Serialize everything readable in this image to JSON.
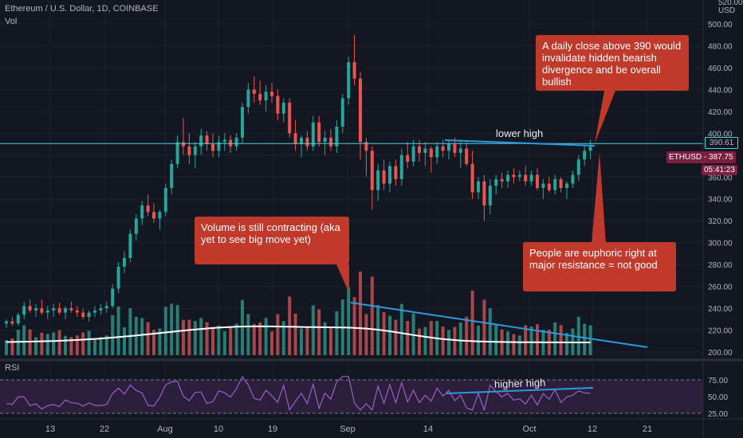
{
  "header": {
    "symbol_line": "Ethereum / U.S. Dollar, 1D, COINBASE",
    "volume_label": "Vol",
    "rsi_label": "RSI"
  },
  "price_axis": {
    "currency": "USD",
    "top_partial": "520.00",
    "ticks": [
      "500.00",
      "480.00",
      "460.00",
      "440.00",
      "420.00",
      "400.00",
      "380.00",
      "360.00",
      "340.00",
      "320.00",
      "300.00",
      "280.00",
      "260.00",
      "240.00",
      "220.00",
      "200.00"
    ],
    "resistance_label": "390.61",
    "symbol_tag": "ETHUSD",
    "last_price": "387.75",
    "countdown": "05:41:23"
  },
  "rsi_axis": {
    "ticks": [
      "75.00",
      "50.00",
      "25.00"
    ]
  },
  "time_axis": {
    "ticks": [
      "13",
      "22",
      "Aug",
      "10",
      "19",
      "Sep",
      "14",
      "Oct",
      "12",
      "21"
    ]
  },
  "annotations": {
    "invalidate": "A daily close above 390 would invalidate hidden bearish divergence and be overall bullish",
    "volume": "Volume is still contracting (aka yet to see big move yet)",
    "euphoric": "People are euphoric right at major resistance = not good",
    "lower_high": "lower high",
    "higher_high": "higher high"
  },
  "colors": {
    "up": "#26a69a",
    "down": "#ef5350",
    "vol_up": "#2a7d74",
    "vol_down": "#a8474b",
    "resistance": "#4dd0e1",
    "trendline": "#2d9ae0",
    "callout": "#c0392b",
    "rsi_band": "#2b1f3c"
  },
  "chart_data": {
    "type": "candlestick",
    "x_start": "2020-07-04",
    "x_end": "2020-10-12",
    "ohlc": [
      [
        226,
        230,
        222,
        228
      ],
      [
        228,
        232,
        224,
        226
      ],
      [
        226,
        236,
        224,
        234
      ],
      [
        234,
        246,
        230,
        242
      ],
      [
        242,
        248,
        236,
        238
      ],
      [
        238,
        244,
        232,
        240
      ],
      [
        240,
        248,
        234,
        236
      ],
      [
        236,
        242,
        230,
        238
      ],
      [
        238,
        244,
        232,
        240
      ],
      [
        240,
        245,
        234,
        236
      ],
      [
        236,
        242,
        230,
        240
      ],
      [
        240,
        246,
        236,
        238
      ],
      [
        238,
        242,
        232,
        236
      ],
      [
        236,
        240,
        230,
        232
      ],
      [
        232,
        238,
        228,
        236
      ],
      [
        236,
        242,
        232,
        238
      ],
      [
        238,
        244,
        234,
        240
      ],
      [
        240,
        246,
        236,
        242
      ],
      [
        242,
        262,
        240,
        258
      ],
      [
        258,
        282,
        254,
        278
      ],
      [
        278,
        292,
        272,
        286
      ],
      [
        286,
        312,
        282,
        308
      ],
      [
        308,
        326,
        302,
        322
      ],
      [
        322,
        338,
        316,
        334
      ],
      [
        334,
        344,
        324,
        328
      ],
      [
        328,
        336,
        318,
        322
      ],
      [
        322,
        330,
        312,
        328
      ],
      [
        328,
        354,
        324,
        350
      ],
      [
        350,
        376,
        344,
        372
      ],
      [
        372,
        398,
        368,
        392
      ],
      [
        392,
        414,
        380,
        388
      ],
      [
        388,
        400,
        372,
        380
      ],
      [
        380,
        392,
        368,
        388
      ],
      [
        388,
        404,
        380,
        398
      ],
      [
        398,
        402,
        384,
        390
      ],
      [
        390,
        400,
        378,
        384
      ],
      [
        384,
        398,
        378,
        392
      ],
      [
        392,
        400,
        384,
        394
      ],
      [
        394,
        398,
        382,
        388
      ],
      [
        388,
        400,
        384,
        396
      ],
      [
        396,
        428,
        390,
        424
      ],
      [
        424,
        446,
        418,
        440
      ],
      [
        440,
        452,
        428,
        436
      ],
      [
        436,
        448,
        426,
        430
      ],
      [
        430,
        444,
        420,
        438
      ],
      [
        438,
        446,
        428,
        434
      ],
      [
        434,
        440,
        412,
        418
      ],
      [
        418,
        432,
        410,
        428
      ],
      [
        428,
        432,
        396,
        400
      ],
      [
        400,
        412,
        384,
        390
      ],
      [
        390,
        398,
        378,
        396
      ],
      [
        396,
        402,
        384,
        388
      ],
      [
        388,
        416,
        384,
        410
      ],
      [
        410,
        416,
        388,
        392
      ],
      [
        392,
        402,
        380,
        396
      ],
      [
        396,
        404,
        384,
        388
      ],
      [
        388,
        412,
        382,
        406
      ],
      [
        406,
        436,
        400,
        432
      ],
      [
        432,
        470,
        426,
        465
      ],
      [
        465,
        490,
        444,
        450
      ],
      [
        450,
        456,
        376,
        392
      ],
      [
        392,
        396,
        360,
        384
      ],
      [
        384,
        388,
        330,
        348
      ],
      [
        348,
        372,
        338,
        366
      ],
      [
        366,
        376,
        348,
        354
      ],
      [
        354,
        374,
        346,
        370
      ],
      [
        370,
        376,
        352,
        358
      ],
      [
        358,
        386,
        352,
        380
      ],
      [
        380,
        392,
        368,
        374
      ],
      [
        374,
        394,
        370,
        388
      ],
      [
        388,
        394,
        374,
        382
      ],
      [
        382,
        392,
        370,
        386
      ],
      [
        386,
        388,
        364,
        378
      ],
      [
        378,
        392,
        372,
        388
      ],
      [
        388,
        394,
        378,
        384
      ],
      [
        384,
        394,
        376,
        390
      ],
      [
        390,
        396,
        378,
        382
      ],
      [
        382,
        394,
        368,
        386
      ],
      [
        386,
        392,
        370,
        372
      ],
      [
        372,
        384,
        340,
        346
      ],
      [
        346,
        360,
        340,
        356
      ],
      [
        356,
        362,
        320,
        334
      ],
      [
        334,
        358,
        326,
        352
      ],
      [
        352,
        362,
        344,
        358
      ],
      [
        358,
        364,
        350,
        356
      ],
      [
        356,
        366,
        350,
        362
      ],
      [
        362,
        368,
        354,
        360
      ],
      [
        360,
        366,
        356,
        362
      ],
      [
        362,
        370,
        352,
        356
      ],
      [
        356,
        366,
        352,
        362
      ],
      [
        362,
        368,
        348,
        350
      ],
      [
        350,
        358,
        340,
        354
      ],
      [
        354,
        360,
        346,
        348
      ],
      [
        348,
        362,
        344,
        358
      ],
      [
        358,
        360,
        346,
        350
      ],
      [
        350,
        356,
        340,
        354
      ],
      [
        354,
        366,
        350,
        362
      ],
      [
        362,
        380,
        356,
        376
      ],
      [
        376,
        388,
        370,
        384
      ],
      [
        384,
        394,
        376,
        387.75
      ]
    ],
    "volume_ma": "present (white line)",
    "rsi_range": [
      25,
      75
    ],
    "levels": [
      {
        "name": "resistance",
        "value": 390.61
      }
    ],
    "price_range": [
      200,
      520
    ],
    "rsi_ylim": [
      20,
      85
    ]
  }
}
